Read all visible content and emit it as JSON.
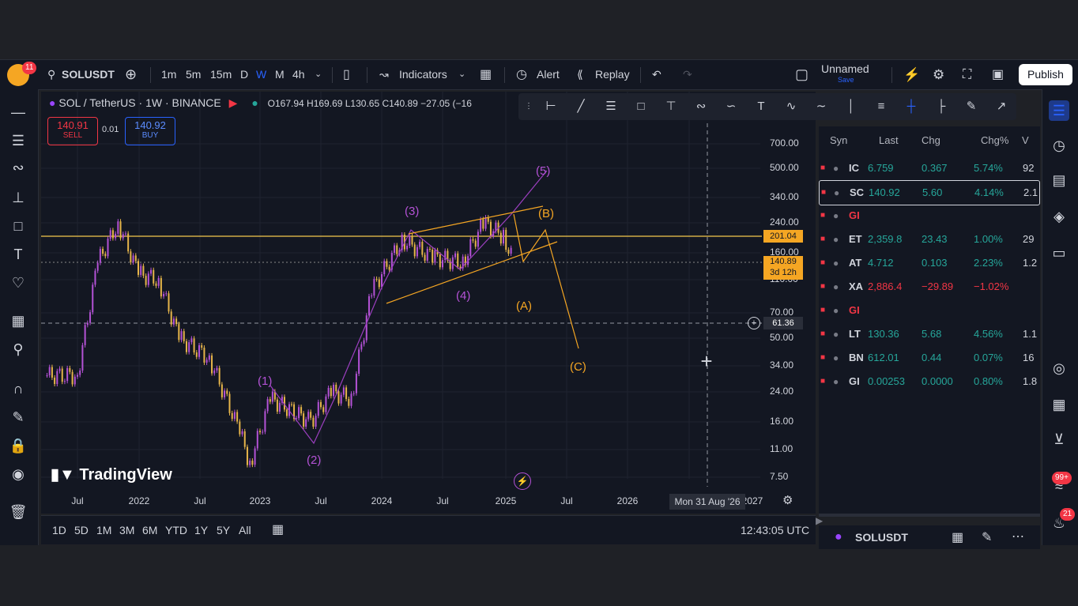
{
  "topbar": {
    "avatar_badge": "11",
    "symbol": "SOLUSDT",
    "intervals": [
      "1m",
      "5m",
      "15m",
      "D",
      "W",
      "M",
      "4h"
    ],
    "indicators_label": "Indicators",
    "alert_label": "Alert",
    "replay_label": "Replay",
    "layout_name": "Unnamed",
    "layout_save": "Save",
    "publish_label": "Publish"
  },
  "chart": {
    "title": "SOL / TetherUS · 1W · BINANCE",
    "ohlc": "O167.94  H169.69  L130.65  C140.89  −27.05 (−16",
    "sell_price": "140.91",
    "sell_label": "SELL",
    "spread": "0.01",
    "buy_price": "140.92",
    "buy_label": "BUY",
    "watermark": "TradingView",
    "price_tag_level": "201.04",
    "price_tag_last": "140.89",
    "price_tag_countdown": "3d 12h",
    "price_tag_cursor": "61.36",
    "crosshair_date": "Mon 31 Aug '26",
    "colors": {
      "up": "#b452d6",
      "down": "#e6b54a",
      "level": "#f5c84c",
      "wave_purple": "#b452d6",
      "wave_orange": "#f5a623"
    }
  },
  "chart_data": {
    "type": "candlestick-line",
    "x_ticks": [
      "Jul",
      "2022",
      "Jul",
      "2023",
      "Jul",
      "2024",
      "Jul",
      "2025",
      "Jul",
      "2026",
      "2027"
    ],
    "y_ticks": [
      "700.00",
      "500.00",
      "340.00",
      "240.00",
      "160.00",
      "110.00",
      "70.00",
      "50.00",
      "34.00",
      "24.00",
      "16.00",
      "11.00",
      "7.50"
    ],
    "y_scale": "log",
    "approx_close_path": [
      {
        "x": "2021-04",
        "y": 30
      },
      {
        "x": "2021-07",
        "y": 30
      },
      {
        "x": "2021-09",
        "y": 140
      },
      {
        "x": "2021-11",
        "y": 240
      },
      {
        "x": "2022-01",
        "y": 120
      },
      {
        "x": "2022-03",
        "y": 110
      },
      {
        "x": "2022-05",
        "y": 50
      },
      {
        "x": "2022-08",
        "y": 38
      },
      {
        "x": "2022-11",
        "y": 14
      },
      {
        "x": "2022-12",
        "y": 9
      },
      {
        "x": "2023-02",
        "y": 22
      },
      {
        "x": "2023-06",
        "y": 16
      },
      {
        "x": "2023-08",
        "y": 24
      },
      {
        "x": "2023-10",
        "y": 22
      },
      {
        "x": "2023-12",
        "y": 95
      },
      {
        "x": "2024-03",
        "y": 190
      },
      {
        "x": "2024-06",
        "y": 150
      },
      {
        "x": "2024-09",
        "y": 140
      },
      {
        "x": "2024-11",
        "y": 240
      },
      {
        "x": "2025-01",
        "y": 200
      },
      {
        "x": "2025-02",
        "y": 140
      }
    ],
    "wave_labels_purple": [
      "(1)",
      "(2)",
      "(3)",
      "(4)",
      "(5)"
    ],
    "wave_labels_orange": [
      "(A)",
      "(B)",
      "(C)"
    ]
  },
  "watchlist": {
    "headers": [
      "Syn",
      "Last",
      "Chg",
      "Chg%",
      "V"
    ],
    "rows": [
      {
        "sym": "IC",
        "last": "6.759",
        "chg": "0.367",
        "pct": "5.74%",
        "vol": "92",
        "dir": "up"
      },
      {
        "sym": "SC",
        "last": "140.92",
        "chg": "5.60",
        "pct": "4.14%",
        "vol": "2.1",
        "dir": "up"
      },
      {
        "sym": "GI",
        "last": "",
        "chg": "",
        "pct": "",
        "vol": "",
        "dir": "none"
      },
      {
        "sym": "ET",
        "last": "2,359.8",
        "chg": "23.43",
        "pct": "1.00%",
        "vol": "29",
        "dir": "up"
      },
      {
        "sym": "AT",
        "last": "4.712",
        "chg": "0.103",
        "pct": "2.23%",
        "vol": "1.2",
        "dir": "up"
      },
      {
        "sym": "XA",
        "last": "2,886.4",
        "chg": "−29.89",
        "pct": "−1.02%",
        "vol": "",
        "dir": "down"
      },
      {
        "sym": "GI",
        "last": "",
        "chg": "",
        "pct": "",
        "vol": "",
        "dir": "none"
      },
      {
        "sym": "LT",
        "last": "130.36",
        "chg": "5.68",
        "pct": "4.56%",
        "vol": "1.1",
        "dir": "up"
      },
      {
        "sym": "BN",
        "last": "612.01",
        "chg": "0.44",
        "pct": "0.07%",
        "vol": "16",
        "dir": "up"
      },
      {
        "sym": "GI",
        "last": "0.00253",
        "chg": "0.0000",
        "pct": "0.80%",
        "vol": "1.8",
        "dir": "up"
      }
    ],
    "footer_symbol": "SOLUSDT"
  },
  "bottombar": {
    "ranges": [
      "1D",
      "5D",
      "1M",
      "3M",
      "6M",
      "YTD",
      "1Y",
      "5Y",
      "All"
    ],
    "clock": "12:43:05 UTC"
  },
  "righttb": {
    "badge_99": "99+",
    "badge_21": "21"
  }
}
